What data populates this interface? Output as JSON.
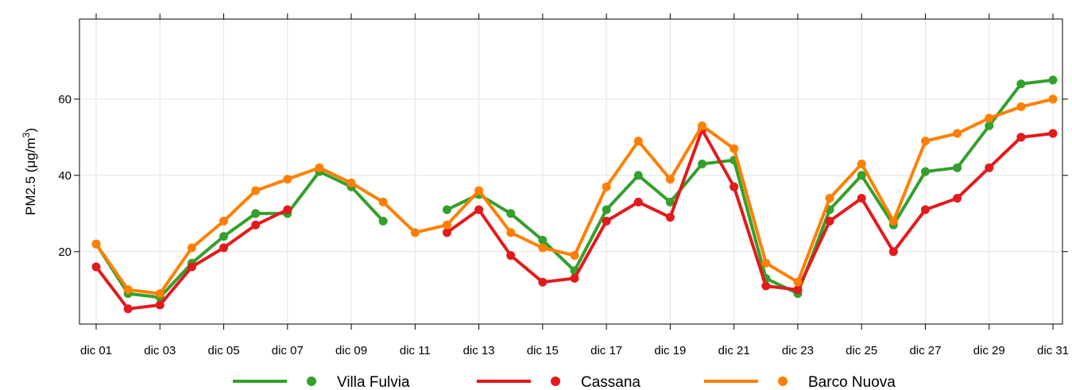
{
  "chart_data": {
    "type": "line",
    "ylabel": {
      "base": "PM2.5 (",
      "mu": "μ",
      "unit": "g/m",
      "sup": "3",
      "close": ")"
    },
    "y_ticks": [
      20,
      40,
      60
    ],
    "ylim": [
      1,
      81
    ],
    "x": [
      "dic 01",
      "dic 02",
      "dic 03",
      "dic 04",
      "dic 05",
      "dic 06",
      "dic 07",
      "dic 08",
      "dic 09",
      "dic 10",
      "dic 11",
      "dic 12",
      "dic 13",
      "dic 14",
      "dic 15",
      "dic 16",
      "dic 17",
      "dic 18",
      "dic 19",
      "dic 20",
      "dic 21",
      "dic 22",
      "dic 23",
      "dic 24",
      "dic 25",
      "dic 26",
      "dic 27",
      "dic 28",
      "dic 29",
      "dic 30",
      "dic 31"
    ],
    "x_tick_labels": [
      "dic 01",
      "dic 03",
      "dic 05",
      "dic 07",
      "dic 09",
      "dic 11",
      "dic 13",
      "dic 15",
      "dic 17",
      "dic 19",
      "dic 21",
      "dic 23",
      "dic 25",
      "dic 27",
      "dic 29",
      "dic 31"
    ],
    "grid": true,
    "legend_position": "bottom",
    "series": [
      {
        "name": "Villa Fulvia",
        "color": "#33A02C",
        "values": [
          22,
          9,
          8,
          17,
          24,
          30,
          30,
          41,
          37,
          28,
          null,
          31,
          35,
          30,
          23,
          15,
          31,
          40,
          33,
          43,
          44,
          13,
          9,
          31,
          40,
          27,
          41,
          42,
          53,
          64,
          65
        ]
      },
      {
        "name": "Cassana",
        "color": "#E31A1C",
        "values": [
          16,
          5,
          6,
          16,
          21,
          27,
          31,
          null,
          null,
          null,
          null,
          25,
          31,
          19,
          12,
          13,
          28,
          33,
          29,
          52,
          37,
          11,
          10,
          28,
          34,
          20,
          31,
          34,
          42,
          50,
          51
        ]
      },
      {
        "name": "Barco Nuova",
        "color": "#FF7F00",
        "values": [
          22,
          10,
          9,
          21,
          28,
          36,
          39,
          42,
          38,
          33,
          25,
          27,
          36,
          25,
          21,
          19,
          37,
          49,
          39,
          53,
          47,
          17,
          12,
          34,
          43,
          28,
          49,
          51,
          55,
          58,
          60
        ]
      }
    ]
  }
}
